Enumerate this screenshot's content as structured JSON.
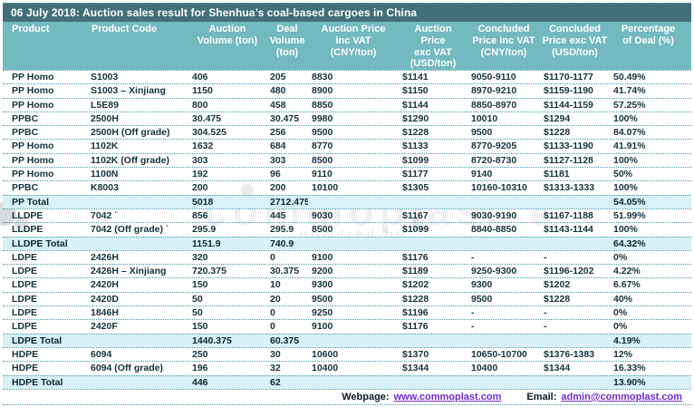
{
  "title": "06 July 2018: Auction sales result for Shenhua’s coal-based cargoes in China",
  "table": {
    "columns": [
      "Product",
      "Product Code",
      "Auction\nVolume (ton)",
      "Deal\nVolume\n(ton)",
      "Auction Price\ninc VAT\n(CNY/ton)",
      "Auction\nPrice\nexc VAT\n(USD/ton)",
      "Concluded\nPrice inc VAT\n(CNY/ton)",
      "Concluded\nPrice exc VAT\n(USD/ton)",
      "Percentage\nof Deal (%)"
    ],
    "rows": [
      {
        "total": false,
        "cells": [
          "PP Homo",
          "S1003",
          "406",
          "205",
          "8830",
          "$1141",
          "9050-9110",
          "$1170-1177",
          "50.49%"
        ]
      },
      {
        "total": false,
        "cells": [
          "PP Homo",
          "S1003 – Xinjiang",
          "1150",
          "480",
          "8900",
          "$1150",
          "8970-9210",
          "$1159-1190",
          "41.74%"
        ]
      },
      {
        "total": false,
        "cells": [
          "PP Homo",
          "L5E89",
          "800",
          "458",
          "8850",
          "$1144",
          "8850-8970",
          "$1144-1159",
          "57.25%"
        ]
      },
      {
        "total": false,
        "cells": [
          "PPBC",
          "2500H",
          "30.475",
          "30.475",
          "9980",
          "$1290",
          "10010",
          "$1294",
          "100%"
        ]
      },
      {
        "total": false,
        "cells": [
          "PPBC",
          "2500H (Off grade)",
          "304.525",
          "256",
          "9500",
          "$1228",
          "9500",
          "$1228",
          "84.07%"
        ]
      },
      {
        "total": false,
        "cells": [
          "PP Homo",
          "1102K",
          "1632",
          "684",
          "8770",
          "$1133",
          "8770-9205",
          "$1133-1190",
          "41.91%"
        ]
      },
      {
        "total": false,
        "cells": [
          "PP Homo",
          "1102K (Off grade)",
          "303",
          "303",
          "8500",
          "$1099",
          "8720-8730",
          "$1127-1128",
          "100%"
        ]
      },
      {
        "total": false,
        "cells": [
          "PP Homo",
          "1100N",
          "192",
          "96",
          "9110",
          "$1177",
          "9140",
          "$1181",
          "50%"
        ]
      },
      {
        "total": false,
        "cells": [
          "PPBC",
          "K8003",
          "200",
          "200",
          "10100",
          "$1305",
          "10160-10310",
          "$1313-1333",
          "100%"
        ]
      },
      {
        "total": true,
        "cells": [
          "PP Total",
          "",
          "5018",
          "2712.475",
          "",
          "",
          "",
          "",
          "54.05%"
        ]
      },
      {
        "total": false,
        "cells": [
          "LLDPE",
          "7042  `",
          "856",
          "445",
          "9030",
          "$1167",
          "9030-9190",
          "$1167-1188",
          "51.99%"
        ]
      },
      {
        "total": false,
        "cells": [
          "LLDPE",
          "7042 (Off grade)  `",
          "295.9",
          "295.9",
          "8500",
          "$1099",
          "8840-8850",
          "$1143-1144",
          "100%"
        ]
      },
      {
        "total": true,
        "cells": [
          "LLDPE Total",
          "",
          "1151.9",
          "740.9",
          "",
          "",
          "",
          "",
          "64.32%"
        ]
      },
      {
        "total": false,
        "cells": [
          "LDPE",
          "2426H",
          "320",
          "0",
          "9100",
          "$1176",
          "-",
          "-",
          "0%"
        ]
      },
      {
        "total": false,
        "cells": [
          "LDPE",
          "2426H – Xinjiang",
          "720.375",
          "30.375",
          "9200",
          "$1189",
          "9250-9300",
          "$1196-1202",
          "4.22%"
        ]
      },
      {
        "total": false,
        "cells": [
          "LDPE",
          "2420H",
          "150",
          "10",
          "9300",
          "$1202",
          "9300",
          "$1202",
          "6.67%"
        ]
      },
      {
        "total": false,
        "cells": [
          "LDPE",
          "2420D",
          "50",
          "20",
          "9500",
          "$1228",
          "9500",
          "$1228",
          "40%"
        ]
      },
      {
        "total": false,
        "cells": [
          "LDPE",
          "1846H",
          "50",
          "0",
          "9250",
          "$1196",
          "-",
          "-",
          "0%"
        ]
      },
      {
        "total": false,
        "cells": [
          "LDPE",
          "2420F",
          "150",
          "0",
          "9100",
          "$1176",
          "-",
          "-",
          "0%"
        ]
      },
      {
        "total": true,
        "cells": [
          "LDPE Total",
          "",
          "1440.375",
          "60.375",
          "",
          "",
          "",
          "",
          "4.19%"
        ]
      },
      {
        "total": false,
        "cells": [
          "HDPE",
          "6094",
          "250",
          "30",
          "10600",
          "$1370",
          "10650-10700",
          "$1376-1383",
          "12%"
        ]
      },
      {
        "total": false,
        "cells": [
          "HDPE",
          "6094 (Off grade)",
          "196",
          "32",
          "10400",
          "$1344",
          "10400",
          "$1344",
          "16.33%"
        ]
      },
      {
        "total": true,
        "cells": [
          "HDPE Total",
          "",
          "446",
          "62",
          "",
          "",
          "",
          "",
          "13.90%"
        ]
      }
    ]
  },
  "footer": {
    "webpage_label": "Webpage:",
    "webpage_url": "www.commoplast.com",
    "email_label": "Email:",
    "email_address": "admin@commoplast.com"
  },
  "watermark": {
    "text": "commoplast",
    "subtext": "powered by"
  },
  "colors": {
    "title_bar_bg": "#426F79",
    "header_bg": "#73B9C0",
    "total_row_bg": "#D9F1F6",
    "dotted_line": "#3E98A8",
    "link": "#6F2CD0",
    "body_text": "#17323C"
  }
}
